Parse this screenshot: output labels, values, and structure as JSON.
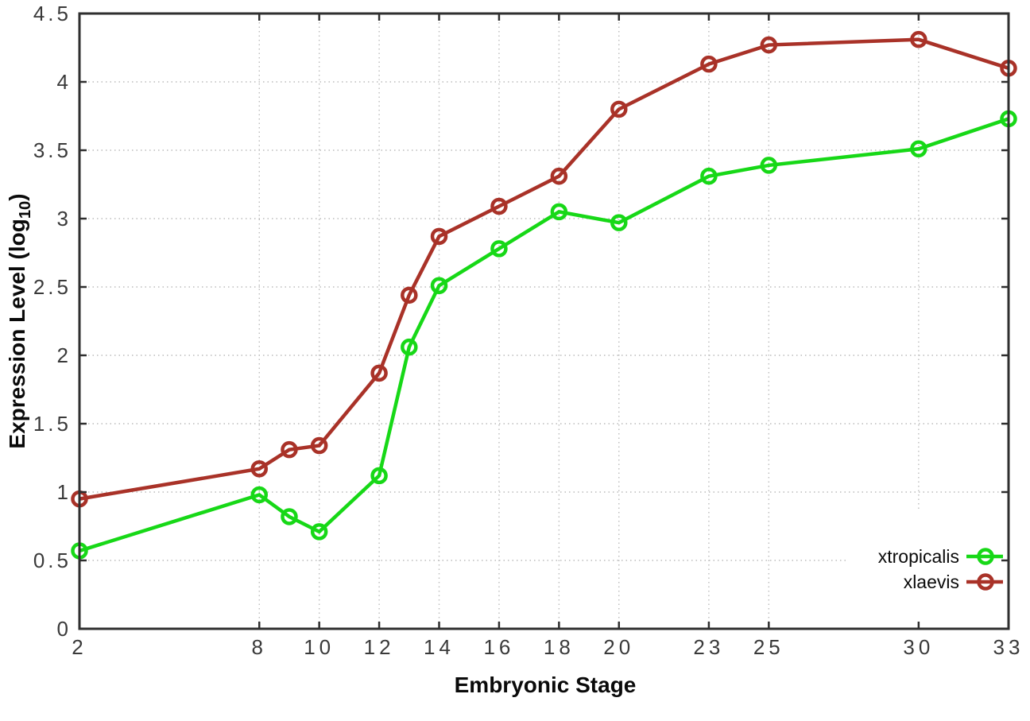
{
  "chart_data": {
    "type": "line",
    "title": "",
    "xlabel": "Embryonic Stage",
    "ylabel": {
      "prefix": "Expression Level (log",
      "sub": "10",
      "suffix": ")"
    },
    "x": [
      2,
      8,
      9,
      10,
      12,
      13,
      14,
      16,
      18,
      20,
      23,
      25,
      30,
      33
    ],
    "series": [
      {
        "name": "xtropicalis",
        "color": "#17d817",
        "values": [
          0.57,
          0.98,
          0.82,
          0.71,
          1.12,
          2.06,
          2.51,
          2.78,
          3.05,
          2.97,
          3.31,
          3.39,
          3.51,
          3.73
        ]
      },
      {
        "name": "xlaevis",
        "color": "#a93228",
        "values": [
          0.95,
          1.17,
          1.31,
          1.34,
          1.87,
          2.44,
          2.87,
          3.09,
          3.31,
          3.8,
          4.13,
          4.27,
          4.31,
          4.1
        ]
      }
    ],
    "xlim": [
      2,
      33
    ],
    "ylim": [
      0,
      4.5
    ],
    "x_ticks": {
      "values": [
        2,
        8,
        10,
        12,
        14,
        16,
        18,
        20,
        23,
        25,
        30,
        33
      ],
      "labels": [
        "2",
        "8",
        "10",
        "12",
        "14",
        "16",
        "18",
        "20",
        "23",
        "25",
        "30",
        "33"
      ]
    },
    "y_ticks": {
      "values": [
        0,
        0.5,
        1,
        1.5,
        2,
        2.5,
        3,
        3.5,
        4,
        4.5
      ],
      "labels": [
        "0",
        "0.5",
        "1",
        "1.5",
        "2",
        "2.5",
        "3",
        "3.5",
        "4",
        "4.5"
      ]
    },
    "grid": "dotted",
    "legend_position": "bottom-right",
    "colors": {
      "grid": "#bcbcbc",
      "border": "#2f2f2f",
      "tick_text": "#3a3a3a",
      "background": "#ffffff"
    }
  }
}
